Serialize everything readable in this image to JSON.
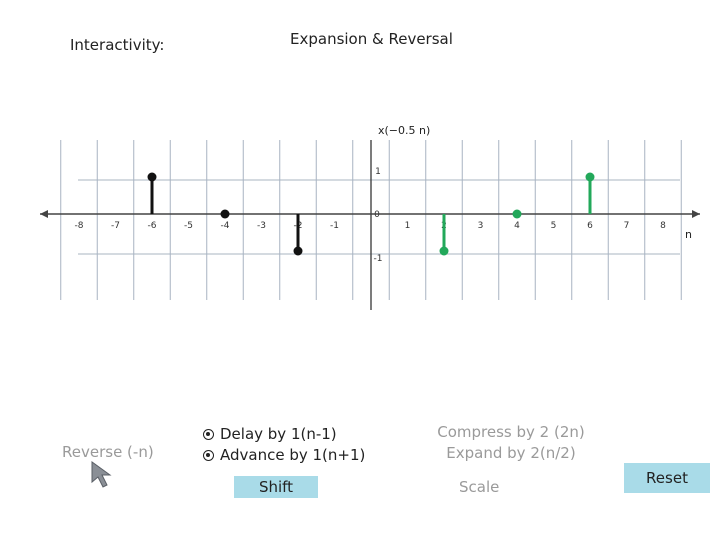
{
  "header": {
    "interactivity_label": "Interactivity:",
    "title": "Expansion & Reversal"
  },
  "controls": {
    "reverse_label": "Reverse (-n)",
    "shift_options": [
      "Delay by 1(n-1)",
      "Advance by 1(n+1)"
    ],
    "shift_button": "Shift",
    "scale_options": [
      "Compress by 2 (2n)",
      "Expand by 2(n/2)"
    ],
    "scale_button": "Scale",
    "reset_button": "Reset"
  },
  "colors": {
    "grid": "#a8b4c2",
    "axis": "#444444",
    "original_signal": "#111111",
    "transformed_signal": "#22a85a",
    "button_bg": "#a9dbe8",
    "disabled_text": "#9a9a9a"
  },
  "chart_data": {
    "type": "stem",
    "signal_label": "x(−0.5 n)",
    "xlabel": "n",
    "xlim": [
      -9,
      9
    ],
    "ylim": [
      -1.5,
      1.5
    ],
    "x_ticks": [
      -8,
      -7,
      -6,
      -5,
      -4,
      -3,
      -2,
      -1,
      0,
      1,
      2,
      3,
      4,
      5,
      6,
      7,
      8
    ],
    "y_ticks": [
      1,
      -1
    ],
    "series": [
      {
        "color": "#111111",
        "points": [
          [
            -6,
            1
          ],
          [
            -4,
            0
          ],
          [
            -2,
            -1
          ]
        ]
      },
      {
        "color": "#22a85a",
        "points": [
          [
            2,
            -1
          ],
          [
            4,
            0
          ],
          [
            6,
            1
          ]
        ]
      }
    ]
  }
}
